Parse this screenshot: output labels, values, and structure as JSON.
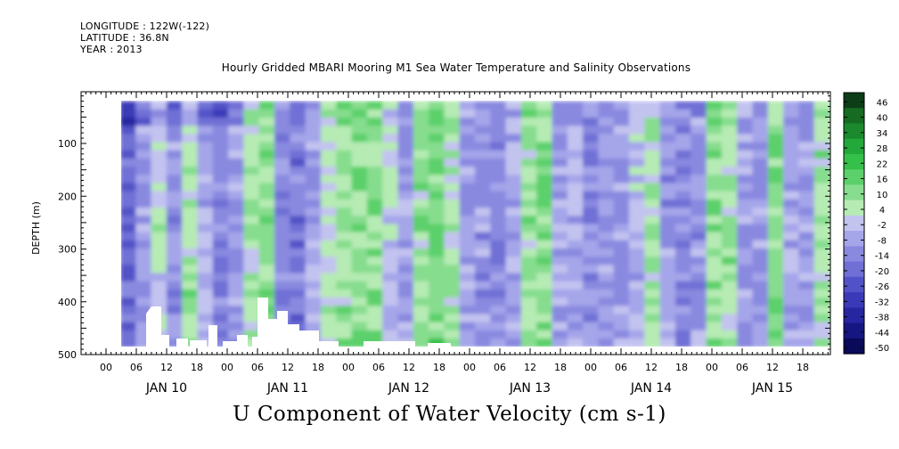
{
  "header": {
    "longitude": "LONGITUDE : 122W(-122)",
    "latitude": "LATITUDE : 36.8N",
    "year": "YEAR : 2013",
    "title": "Hourly Gridded MBARI Mooring M1 Sea Water Temperature and Salinity Observations"
  },
  "chart_data": {
    "type": "heatmap",
    "title": "Hourly Gridded MBARI Mooring M1 Sea Water Temperature and Salinity Observations",
    "xlabel": "U Component of Water Velocity (cm s-1)",
    "ylabel": "DEPTH (m)",
    "x_hour_ticks": [
      "00",
      "06",
      "12",
      "18",
      "00",
      "06",
      "12",
      "18",
      "00",
      "06",
      "12",
      "18",
      "00",
      "06",
      "12",
      "18",
      "00",
      "06",
      "12",
      "18",
      "00",
      "06",
      "12",
      "18"
    ],
    "x_day_labels": [
      "JAN 10",
      "JAN 11",
      "JAN 12",
      "JAN 13",
      "JAN 14",
      "JAN 15"
    ],
    "y_ticks": [
      100,
      200,
      300,
      400,
      500
    ],
    "ylim": [
      500,
      0
    ],
    "data_depth_range_m": [
      20,
      485
    ],
    "colorbar": {
      "levels": [
        "46",
        "40",
        "34",
        "28",
        "22",
        "16",
        "10",
        "4",
        "-2",
        "-8",
        "-14",
        "-20",
        "-26",
        "-32",
        "-38",
        "-44",
        "-50"
      ],
      "colors": [
        "#0d3d16",
        "#156b22",
        "#1b8a2e",
        "#23a83a",
        "#35c04a",
        "#5cd06a",
        "#86dd8e",
        "#b6ebb4",
        "#c3c3f0",
        "#a5a5ea",
        "#8989e0",
        "#6f6fd6",
        "#5252c8",
        "#3a3ab8",
        "#2626a0",
        "#161682",
        "#0a0a5a"
      ]
    },
    "approx_velocity_cm_s_by_column": [
      -18,
      -6,
      4,
      -8,
      10,
      -4,
      -12,
      -6,
      8,
      12,
      -10,
      -14,
      -4,
      6,
      10,
      14,
      12,
      2,
      -6,
      10,
      16,
      8,
      -6,
      -8,
      -10,
      -4,
      10,
      12,
      -6,
      -4,
      -10,
      -8,
      -6,
      -2,
      8,
      -8,
      -10,
      -8,
      12,
      10,
      -6,
      -8,
      14,
      -4,
      -6,
      10
    ]
  }
}
